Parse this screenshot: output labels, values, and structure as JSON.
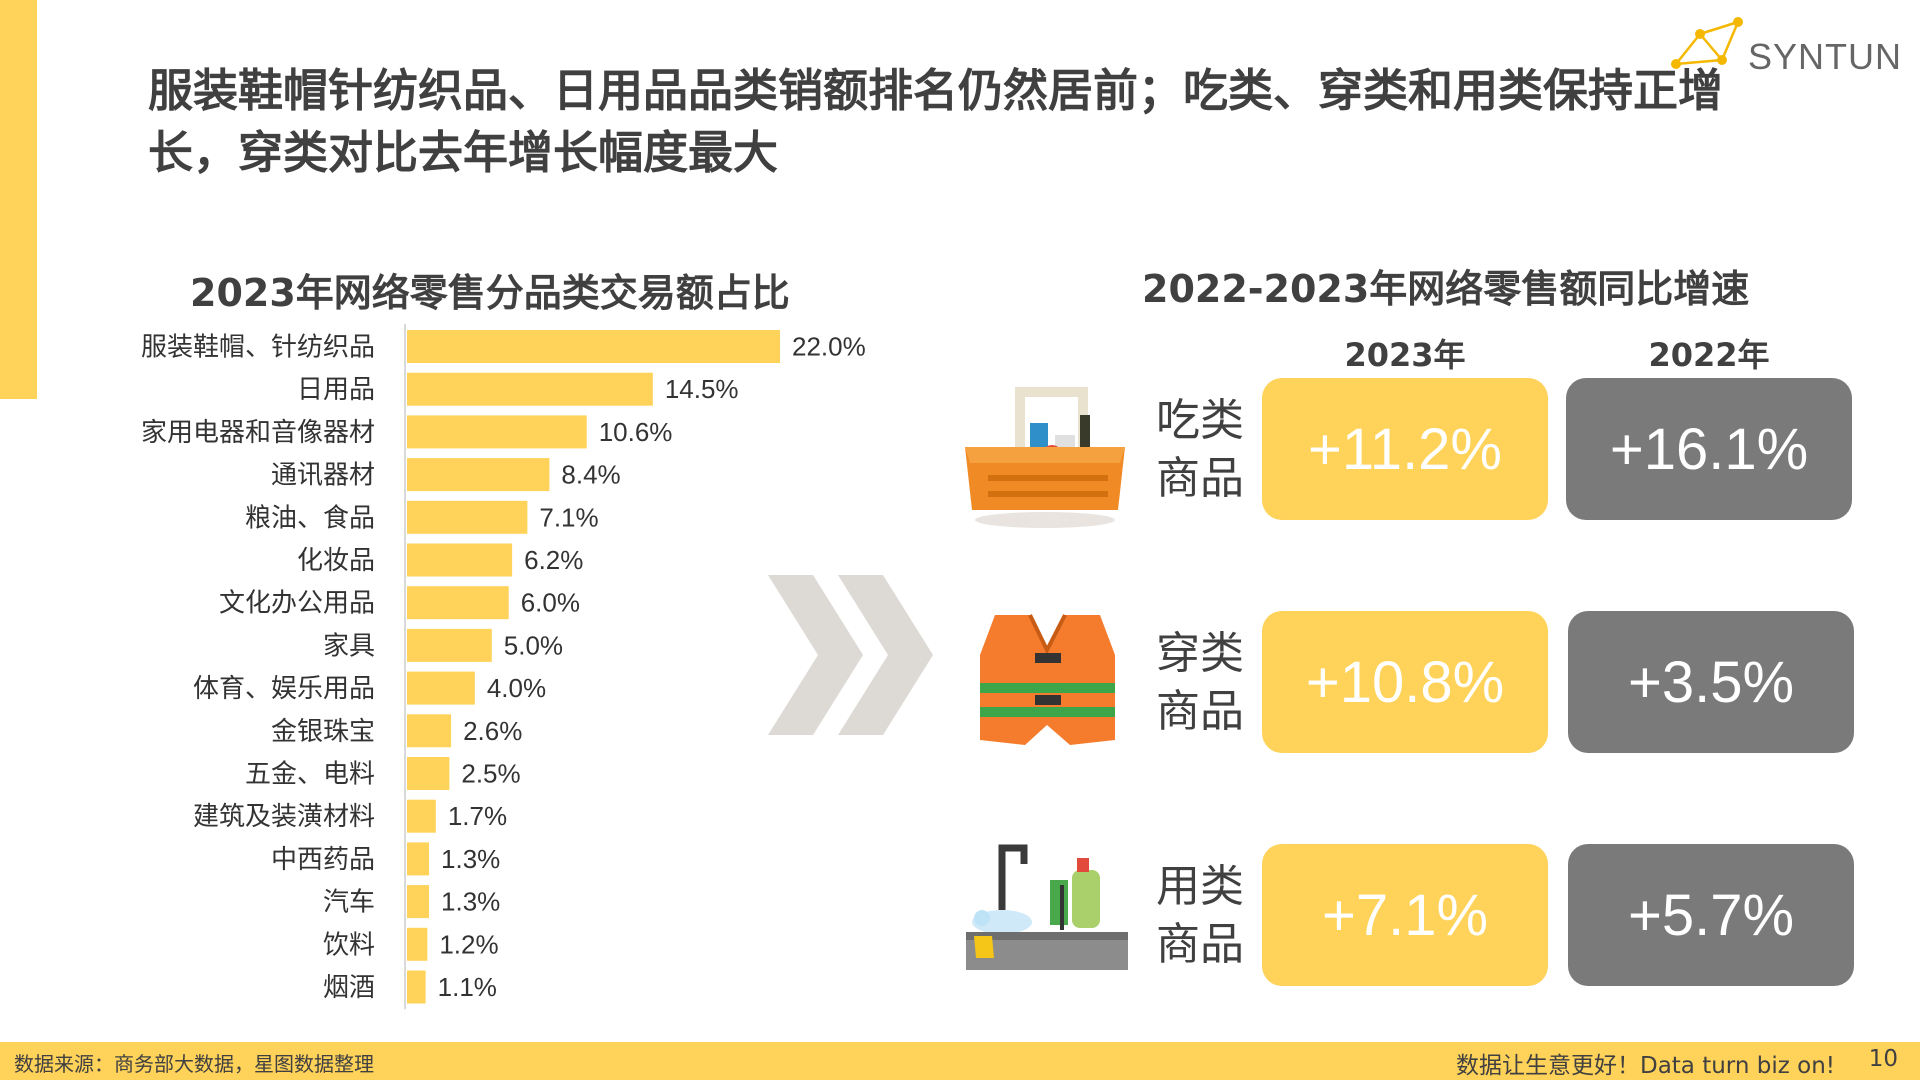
{
  "title": "服装鞋帽针纺织品、日用品品类销额排名仍然居前；吃类、穿类和用类保持正增长，穿类对比去年增长幅度最大",
  "logo": {
    "text": "SYNTUN",
    "accent": "#F5B800"
  },
  "left_chart": {
    "title": "2023年网络零售分品类交易额占比"
  },
  "chart_data": {
    "type": "bar",
    "orientation": "horizontal",
    "title": "2023年网络零售分品类交易额占比",
    "categories": [
      "服装鞋帽、针纺织品",
      "日用品",
      "家用电器和音像器材",
      "通讯器材",
      "粮油、食品",
      "化妆品",
      "文化办公用品",
      "家具",
      "体育、娱乐用品",
      "金银珠宝",
      "五金、电料",
      "建筑及装潢材料",
      "中西药品",
      "汽车",
      "饮料",
      "烟酒"
    ],
    "values": [
      22.0,
      14.5,
      10.6,
      8.4,
      7.1,
      6.2,
      6.0,
      5.0,
      4.0,
      2.6,
      2.5,
      1.7,
      1.3,
      1.3,
      1.2,
      1.1
    ],
    "value_labels": [
      "22.0%",
      "14.5%",
      "10.6%",
      "8.4%",
      "7.1%",
      "6.2%",
      "6.0%",
      "5.0%",
      "4.0%",
      "2.6%",
      "2.5%",
      "1.7%",
      "1.3%",
      "1.3%",
      "1.2%",
      "1.1%"
    ],
    "bar_color": "#FFD25A",
    "xlim": [
      0,
      22
    ]
  },
  "right_panel": {
    "title": "2022-2023年网络零售额同比增速",
    "columns": [
      "2023年",
      "2022年"
    ],
    "rows": [
      {
        "label_line1": "吃类",
        "label_line2": "商品",
        "v2023": "+11.2%",
        "v2022": "+16.1%",
        "icon": "basket-icon"
      },
      {
        "label_line1": "穿类",
        "label_line2": "商品",
        "v2023": "+10.8%",
        "v2022": "+3.5%",
        "icon": "vest-icon"
      },
      {
        "label_line1": "用类",
        "label_line2": "商品",
        "v2023": "+7.1%",
        "v2022": "+5.7%",
        "icon": "sink-icon"
      }
    ],
    "color_2023": "#FFD25A",
    "color_2022": "#7A7A7A"
  },
  "footer": {
    "source": "数据来源：商务部大数据，星图数据整理",
    "slogan": "数据让生意更好！Data turn biz on!",
    "page": "10"
  }
}
